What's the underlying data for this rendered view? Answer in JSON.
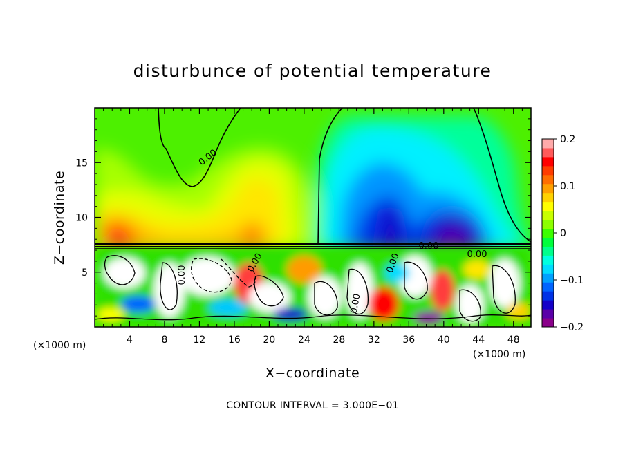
{
  "chart_data": {
    "type": "heatmap",
    "title": "disturbunce of potential temperature",
    "xlabel": "X−coordinate",
    "ylabel": "Z−coordinate",
    "x_unit": "(×1000 m)",
    "x_unit_right": "(×1000 m)",
    "xlim": [
      0,
      50
    ],
    "ylim": [
      0,
      20
    ],
    "xticks": [
      4,
      8,
      12,
      16,
      20,
      24,
      28,
      32,
      36,
      40,
      44,
      48
    ],
    "xtick_labels": [
      "4",
      "8",
      "12",
      "16",
      "20",
      "24",
      "28",
      "32",
      "36",
      "40",
      "44",
      "48"
    ],
    "yticks": [
      5,
      10,
      15
    ],
    "ytick_labels": [
      "5",
      "10",
      "15"
    ],
    "contour_labels": [
      "0.00",
      "0.00",
      "0.00",
      "0.00",
      "0.00",
      "0.00",
      "0.00"
    ],
    "colorbar": {
      "min": -0.2,
      "max": 0.2,
      "ticks": [
        0.2,
        0.1,
        0,
        -0.1,
        -0.2
      ],
      "tick_labels": [
        "0.2",
        "0.1",
        "0",
        "−0.1",
        "−0.2"
      ],
      "colors": [
        "#8a008a",
        "#5a00a8",
        "#1400c8",
        "#0032e6",
        "#0064ff",
        "#00a0ff",
        "#00dcff",
        "#00ffe0",
        "#00ff8c",
        "#00ff3c",
        "#3cff00",
        "#8cff00",
        "#c8ff00",
        "#ffff00",
        "#ffd200",
        "#ffa000",
        "#ff6e00",
        "#ff3c00",
        "#ff0000",
        "#ff5a5a",
        "#ffaaaa"
      ]
    },
    "regions": [
      {
        "name": "lower-left warm anomaly",
        "x": [
          1,
          7
        ],
        "z": [
          7.4,
          10
        ],
        "value": 0.15
      },
      {
        "name": "upper-left warm plume",
        "x": [
          8,
          24
        ],
        "z": [
          10,
          19
        ],
        "value": 0.09
      },
      {
        "name": "upper-right cold plume",
        "x": [
          26,
          40
        ],
        "z": [
          9,
          19
        ],
        "value": -0.1
      },
      {
        "name": "cold core",
        "x": [
          32,
          36
        ],
        "z": [
          7.5,
          11
        ],
        "value": -0.19
      },
      {
        "name": "cold core",
        "x": [
          39,
          43
        ],
        "z": [
          7.5,
          9.5
        ],
        "value": -0.19
      }
    ],
    "footer": "CONTOUR INTERVAL = 3.000E−01"
  }
}
